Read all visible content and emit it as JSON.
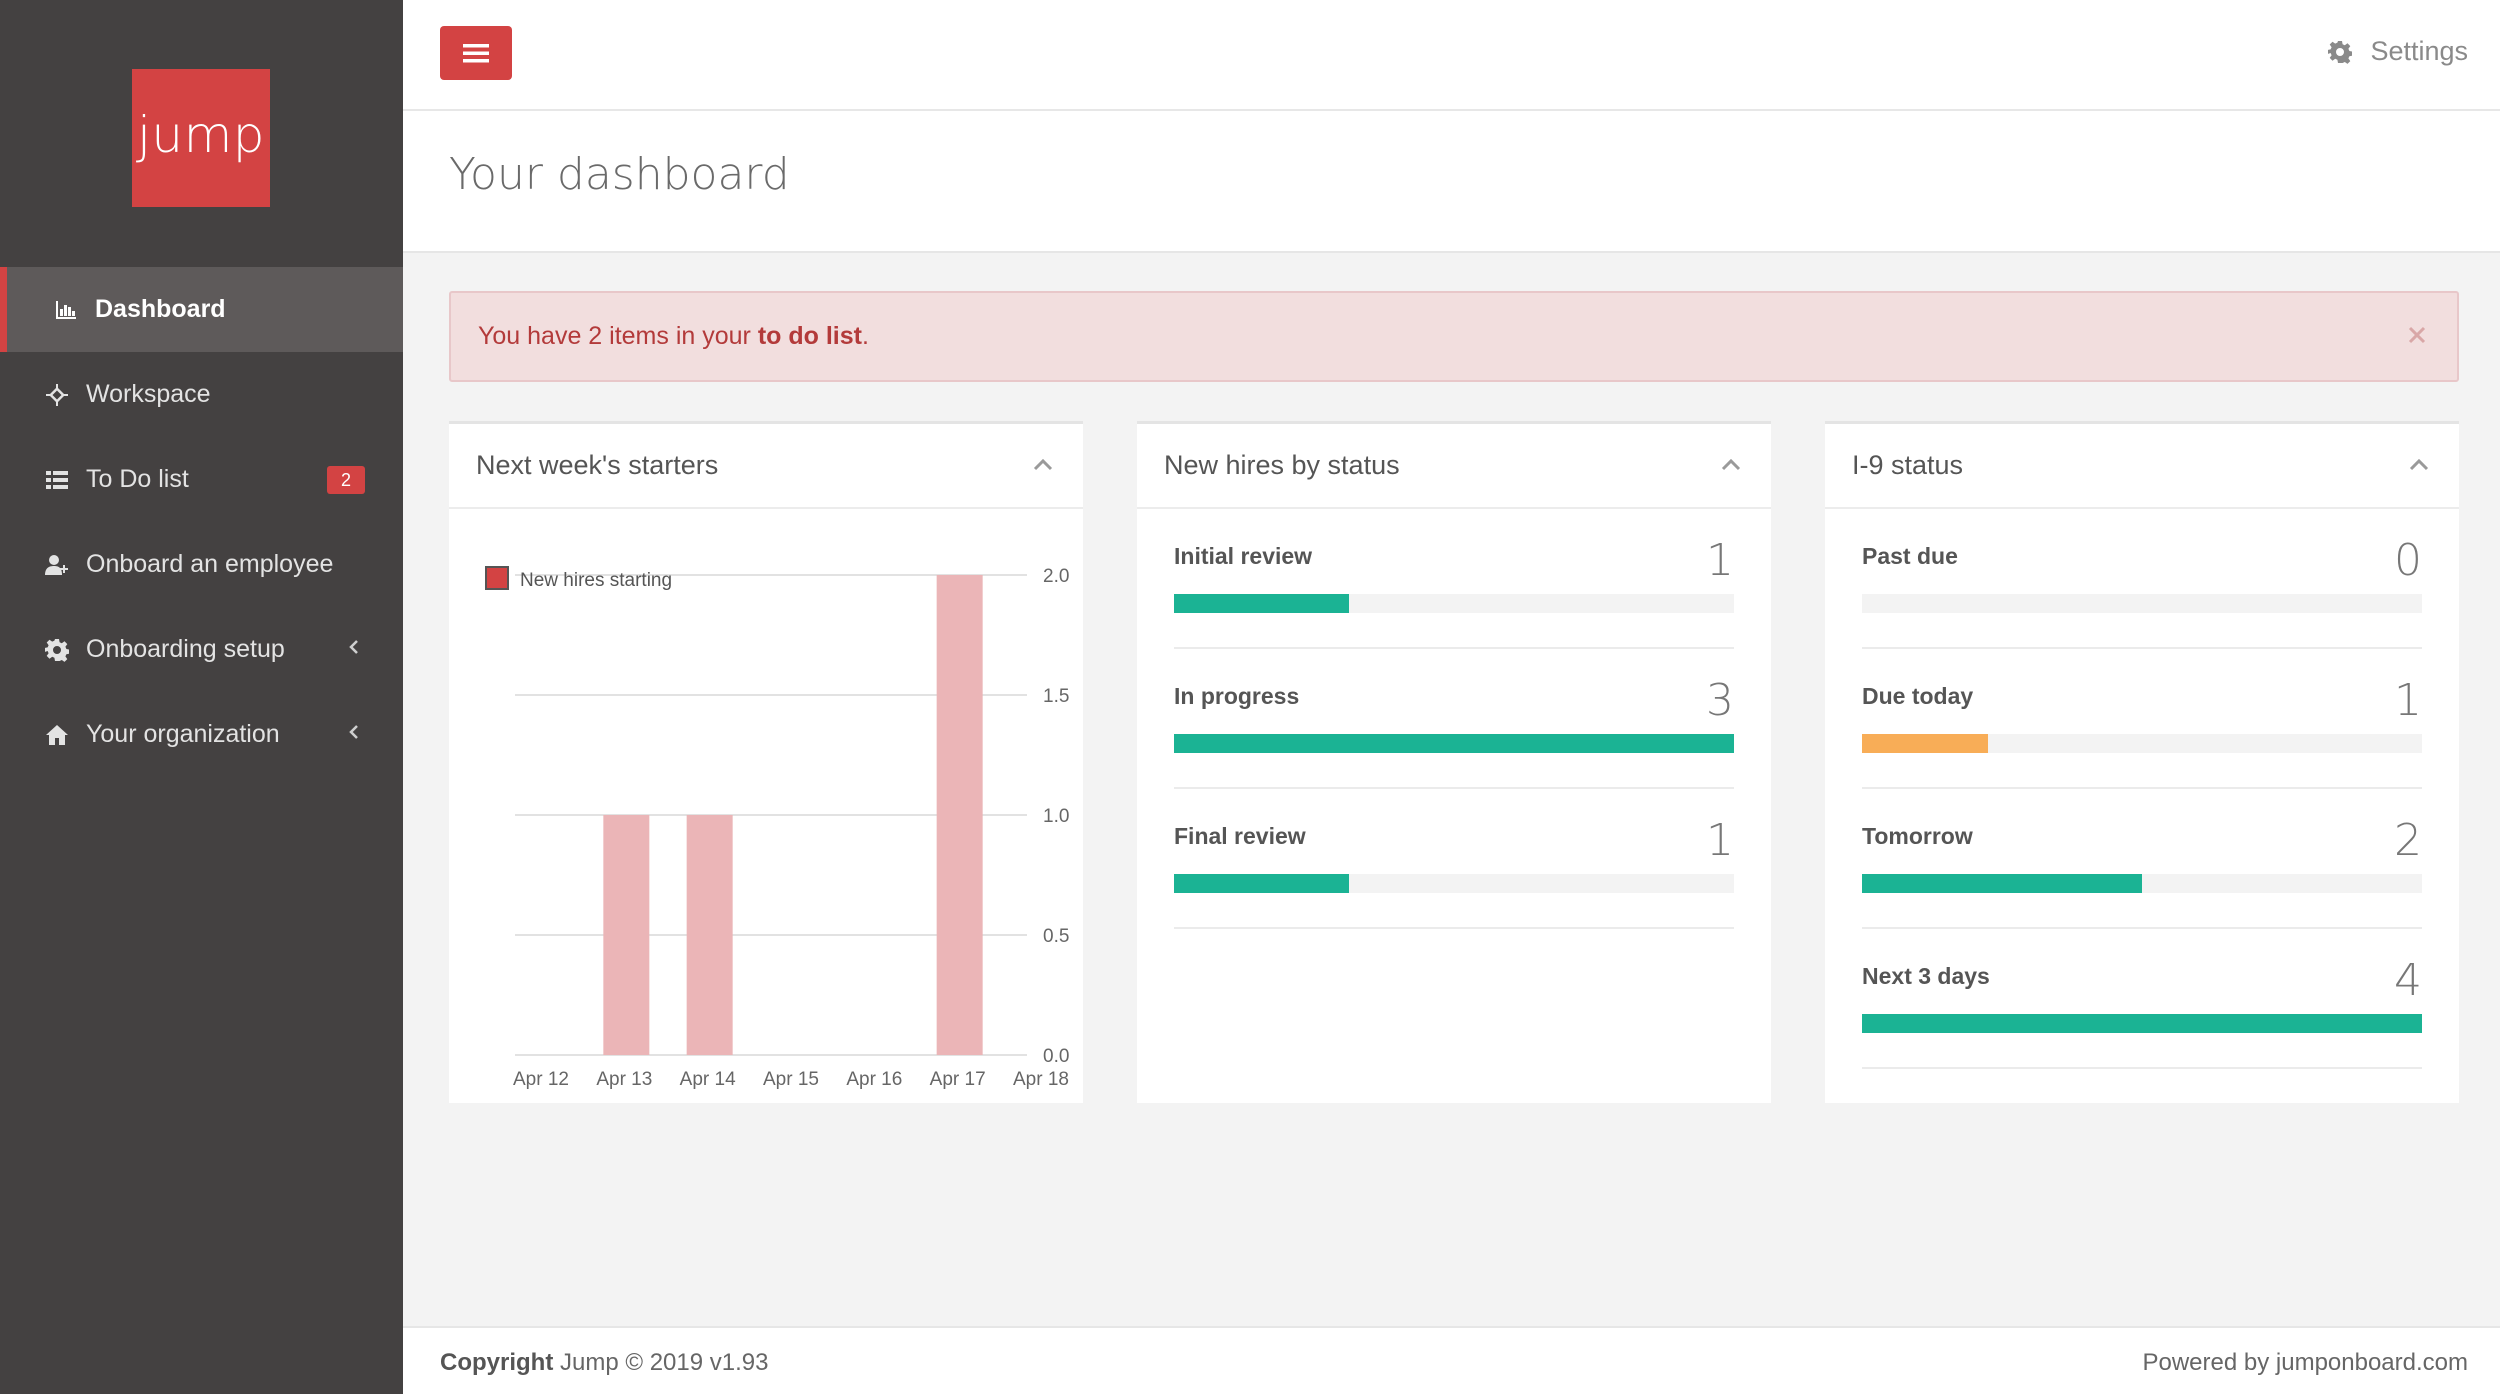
{
  "logo": {
    "text": "jump",
    "color": "#d34343"
  },
  "sidebar": {
    "items": [
      {
        "label": "Dashboard",
        "icon": "bar-chart-icon",
        "active": true
      },
      {
        "label": "Workspace",
        "icon": "crosshair-icon"
      },
      {
        "label": "To Do list",
        "icon": "list-icon",
        "badge": "2"
      },
      {
        "label": "Onboard an employee",
        "icon": "user-add-icon"
      },
      {
        "label": "Onboarding setup",
        "icon": "gear-icon",
        "chevron": true
      },
      {
        "label": "Your organization",
        "icon": "home-icon",
        "chevron": true
      }
    ]
  },
  "topbar": {
    "menu_icon": "hamburger-icon",
    "settings_label": "Settings",
    "settings_icon": "gear-icon"
  },
  "page": {
    "title": "Your dashboard"
  },
  "alert": {
    "prefix": "You have 2 items in your ",
    "link": "to do list",
    "suffix": ".",
    "close_icon": "close-icon"
  },
  "panels": {
    "starters": {
      "title": "Next week's starters",
      "chart_data": {
        "type": "bar",
        "categories": [
          "Apr 12",
          "Apr 13",
          "Apr 14",
          "Apr 15",
          "Apr 16",
          "Apr 17",
          "Apr 18"
        ],
        "series": [
          {
            "name": "New hires starting",
            "values": [
              0,
              1,
              1,
              0,
              0,
              2,
              0
            ]
          }
        ],
        "ylim": [
          0,
          2.0
        ],
        "yticks": [
          "0.0",
          "0.5",
          "1.0",
          "1.5",
          "2.0"
        ],
        "legend": "top-left",
        "grid": true,
        "bar_color": "#ebb5b7",
        "legend_swatch_color": "#d34343"
      }
    },
    "new_hires": {
      "title": "New hires by status",
      "rows": [
        {
          "label": "Initial review",
          "count": "1",
          "fill": 0.313,
          "color": "#1bb394"
        },
        {
          "label": "In progress",
          "count": "3",
          "fill": 1.0,
          "color": "#1bb394"
        },
        {
          "label": "Final review",
          "count": "1",
          "fill": 0.313,
          "color": "#1bb394"
        }
      ]
    },
    "i9": {
      "title": "I-9 status",
      "rows": [
        {
          "label": "Past due",
          "count": "0",
          "fill": 0,
          "color": "#1bb394"
        },
        {
          "label": "Due today",
          "count": "1",
          "fill": 0.225,
          "color": "#f8ad57"
        },
        {
          "label": "Tomorrow",
          "count": "2",
          "fill": 0.5,
          "color": "#1bb394"
        },
        {
          "label": "Next 3 days",
          "count": "4",
          "fill": 1.0,
          "color": "#1bb394"
        }
      ]
    }
  },
  "footer": {
    "copyright_label": "Copyright",
    "copyright_text": " Jump © 2019 v1.93",
    "powered": "Powered by jumponboard.com"
  }
}
